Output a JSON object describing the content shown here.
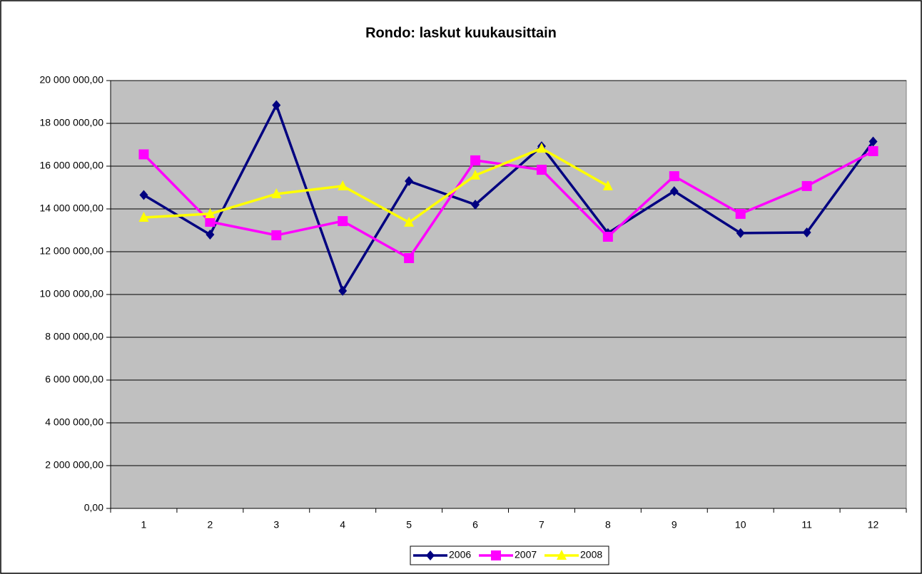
{
  "chart_data": {
    "type": "line",
    "title": "Rondo: laskut kuukausittain",
    "categories": [
      "1",
      "2",
      "3",
      "4",
      "5",
      "6",
      "7",
      "8",
      "9",
      "10",
      "11",
      "12"
    ],
    "series": [
      {
        "name": "2006",
        "color": "#000080",
        "marker": "diamond",
        "values": [
          14650000,
          12800000,
          18850000,
          10170000,
          15300000,
          14200000,
          16930000,
          12870000,
          14830000,
          12870000,
          12900000,
          17150000
        ]
      },
      {
        "name": "2007",
        "color": "#ff00ff",
        "marker": "square",
        "values": [
          16550000,
          13400000,
          12770000,
          13430000,
          11700000,
          16270000,
          15830000,
          12700000,
          15530000,
          13770000,
          15070000,
          16700000
        ]
      },
      {
        "name": "2008",
        "color": "#ffff00",
        "marker": "triangle",
        "values": [
          13600000,
          13770000,
          14700000,
          15070000,
          13370000,
          15570000,
          16830000,
          15070000,
          null,
          null,
          null,
          null
        ]
      }
    ],
    "ylim": [
      0,
      20000000
    ],
    "yticks": [
      {
        "value": 0,
        "label": "0,00"
      },
      {
        "value": 2000000,
        "label": "2 000 000,00"
      },
      {
        "value": 4000000,
        "label": "4 000 000,00"
      },
      {
        "value": 6000000,
        "label": "6 000 000,00"
      },
      {
        "value": 8000000,
        "label": "8 000 000,00"
      },
      {
        "value": 10000000,
        "label": "10 000 000,00"
      },
      {
        "value": 12000000,
        "label": "12 000 000,00"
      },
      {
        "value": 14000000,
        "label": "14 000 000,00"
      },
      {
        "value": 16000000,
        "label": "16 000 000,00"
      },
      {
        "value": 18000000,
        "label": "18 000 000,00"
      },
      {
        "value": 20000000,
        "label": "20 000 000,00"
      }
    ],
    "grid": true,
    "plot_background": "#c0c0c0",
    "legend": "bottom"
  }
}
